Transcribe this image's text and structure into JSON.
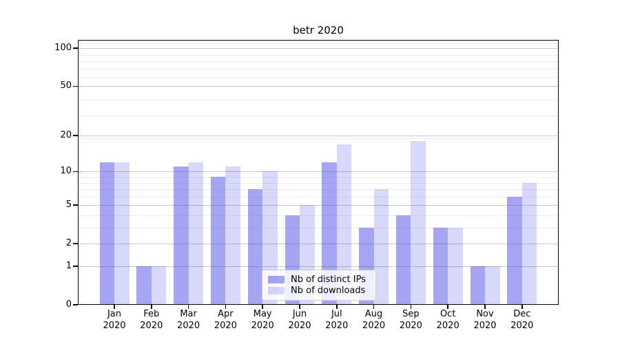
{
  "colors": {
    "bar_distinct_ips": "rgba(50,50,230,0.44)",
    "bar_downloads": "rgba(50,50,230,0.19)",
    "grid_major": "#c6c6c6",
    "grid_minor": "#ebebeb",
    "axis": "#000000",
    "text": "#000000"
  },
  "legend": {
    "items": [
      {
        "label": "Nb of distinct IPs"
      },
      {
        "label": "Nb of downloads"
      }
    ]
  },
  "chart_data": {
    "type": "bar",
    "title": "betr 2020",
    "categories": [
      "Jan",
      "Feb",
      "Mar",
      "Apr",
      "May",
      "Jun",
      "Jul",
      "Aug",
      "Sep",
      "Oct",
      "Nov",
      "Dec"
    ],
    "year_label": "2020",
    "series": [
      {
        "name": "Nb of distinct IPs",
        "color": "rgba(50,50,230,0.44)",
        "values": [
          12,
          1,
          11,
          9,
          7,
          4,
          12,
          3,
          4,
          3,
          1,
          6
        ]
      },
      {
        "name": "Nb of downloads",
        "color": "rgba(50,50,230,0.19)",
        "values": [
          12,
          1,
          12,
          11,
          10,
          5,
          17,
          7,
          18,
          3,
          1,
          8
        ]
      }
    ],
    "y_axis": {
      "scale": "log10(value+1)",
      "ticks": [
        100,
        50,
        20,
        10,
        5,
        2,
        1,
        0
      ],
      "minor_gridlines": [
        3,
        4,
        6,
        7,
        8,
        9,
        19,
        29,
        39,
        59,
        69,
        79,
        89,
        109
      ],
      "range_min": 0,
      "range_max": 110
    },
    "x_axis": {
      "grid": false
    },
    "legend_position": "bottom-center-inside"
  }
}
